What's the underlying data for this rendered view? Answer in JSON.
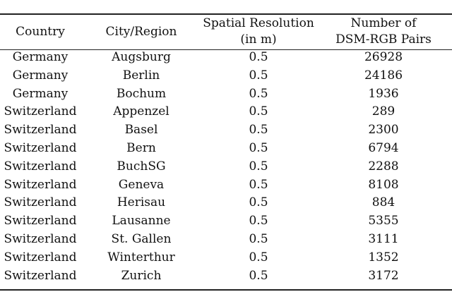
{
  "table": {
    "headers": [
      "Country",
      "City/Region",
      "Spatial Resolution (in m)",
      "Number of DSM-RGB Pairs"
    ],
    "header_lines": [
      [
        "Country"
      ],
      [
        "City/Region"
      ],
      [
        "Spatial Resolution",
        "(in m)"
      ],
      [
        "Number of",
        "DSM-RGB Pairs"
      ]
    ],
    "rows": [
      [
        "Germany",
        "Augsburg",
        "0.5",
        "26928"
      ],
      [
        "Germany",
        "Berlin",
        "0.5",
        "24186"
      ],
      [
        "Germany",
        "Bochum",
        "0.5",
        "1936"
      ],
      [
        "Switzerland",
        "Appenzel",
        "0.5",
        "289"
      ],
      [
        "Switzerland",
        "Basel",
        "0.5",
        "2300"
      ],
      [
        "Switzerland",
        "Bern",
        "0.5",
        "6794"
      ],
      [
        "Switzerland",
        "BuchSG",
        "0.5",
        "2288"
      ],
      [
        "Switzerland",
        "Geneva",
        "0.5",
        "8108"
      ],
      [
        "Switzerland",
        "Herisau",
        "0.5",
        "884"
      ],
      [
        "Switzerland",
        "Lausanne",
        "0.5",
        "5355"
      ],
      [
        "Switzerland",
        "St. Gallen",
        "0.5",
        "3111"
      ],
      [
        "Switzerland",
        "Winterthur",
        "0.5",
        "1352"
      ],
      [
        "Switzerland",
        "Zurich",
        "0.5",
        "3172"
      ]
    ]
  }
}
